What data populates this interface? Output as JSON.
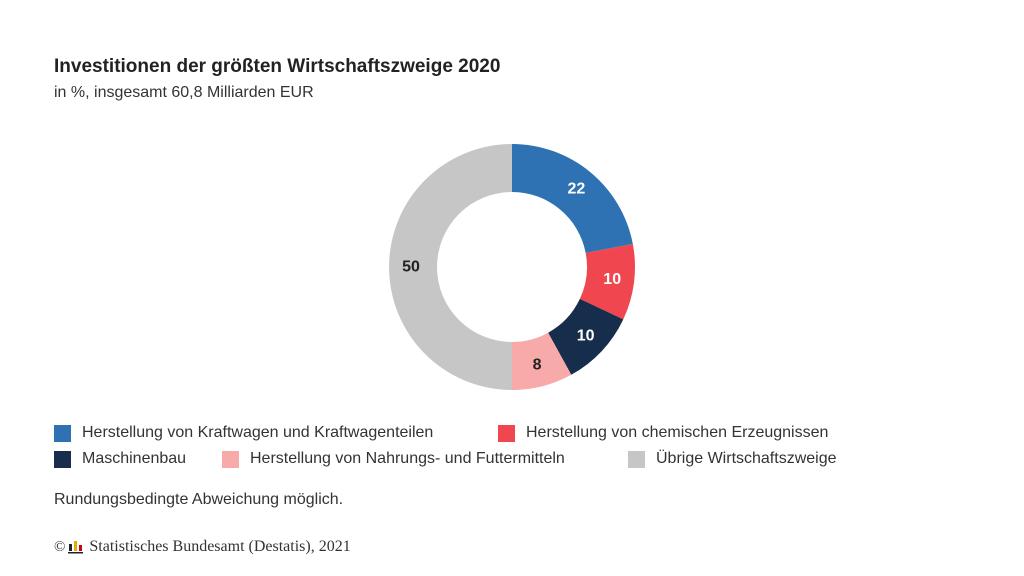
{
  "title": "Investitionen der größten Wirtschaftszweige 2020",
  "subtitle": "in %, insgesamt 60,8 Milliarden EUR",
  "chart_data": {
    "type": "pie",
    "variant": "donut",
    "title": "Investitionen der größten Wirtschaftszweige 2020",
    "subtitle": "in %, insgesamt 60,8 Milliarden EUR",
    "categories": [
      "Herstellung von Kraftwagen und Kraftwagenteilen",
      "Herstellung von chemischen Erzeugnissen",
      "Maschinenbau",
      "Herstellung von Nahrungs- und Futtermitteln",
      "Übrige Wirtschaftszweige"
    ],
    "values": [
      22,
      10,
      10,
      8,
      50
    ],
    "colors": [
      "#2e72b4",
      "#f0464f",
      "#162d4c",
      "#f8aaaa",
      "#c6c6c6"
    ],
    "label_colors": [
      "#ffffff",
      "#ffffff",
      "#ffffff",
      "#222222",
      "#222222"
    ],
    "legend_position": "bottom"
  },
  "note": "Rundungsbedingte Abweichung möglich.",
  "source": {
    "copyright_symbol": "©",
    "logo_icon": "destatis-logo-icon",
    "text": "Statistisches Bundesamt (Destatis), 2021"
  }
}
